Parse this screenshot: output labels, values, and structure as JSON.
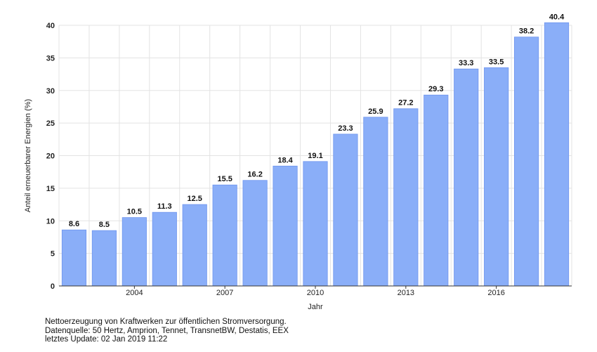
{
  "chart_data": {
    "type": "bar",
    "x": [
      2002,
      2003,
      2004,
      2005,
      2006,
      2007,
      2008,
      2009,
      2010,
      2011,
      2012,
      2013,
      2014,
      2015,
      2016,
      2017,
      2018
    ],
    "values": [
      8.6,
      8.5,
      10.5,
      11.3,
      12.5,
      15.5,
      16.2,
      18.4,
      19.1,
      23.3,
      25.9,
      27.2,
      29.3,
      33.3,
      33.5,
      38.2,
      40.4
    ],
    "data_labels": [
      "8.6",
      "8.5",
      "10.5",
      "11.3",
      "12.5",
      "15.5",
      "16.2",
      "18.4",
      "19.1",
      "23.3",
      "25.9",
      "27.2",
      "29.3",
      "33.3",
      "33.5",
      "38.2",
      "40.4"
    ],
    "x_tick_labels": [
      "2004",
      "2007",
      "2010",
      "2013",
      "2016"
    ],
    "y_ticks": [
      0,
      5,
      10,
      15,
      20,
      25,
      30,
      35,
      40
    ],
    "ylim": [
      0,
      40
    ],
    "xlabel": "Jahr",
    "ylabel": "Anteil erneuerbarer Energien (%)",
    "title": "",
    "grid": true,
    "bar_color": "#8aaef8",
    "bar_stroke": "#6f95ee"
  },
  "footnote": {
    "line1": "Nettoerzeugung von Kraftwerken zur öffentlichen Stromversorgung.",
    "line2": "Datenquelle: 50 Hertz, Amprion, Tennet, TransnetBW, Destatis, EEX",
    "line3": "letztes Update: 02 Jan 2019 11:22"
  }
}
